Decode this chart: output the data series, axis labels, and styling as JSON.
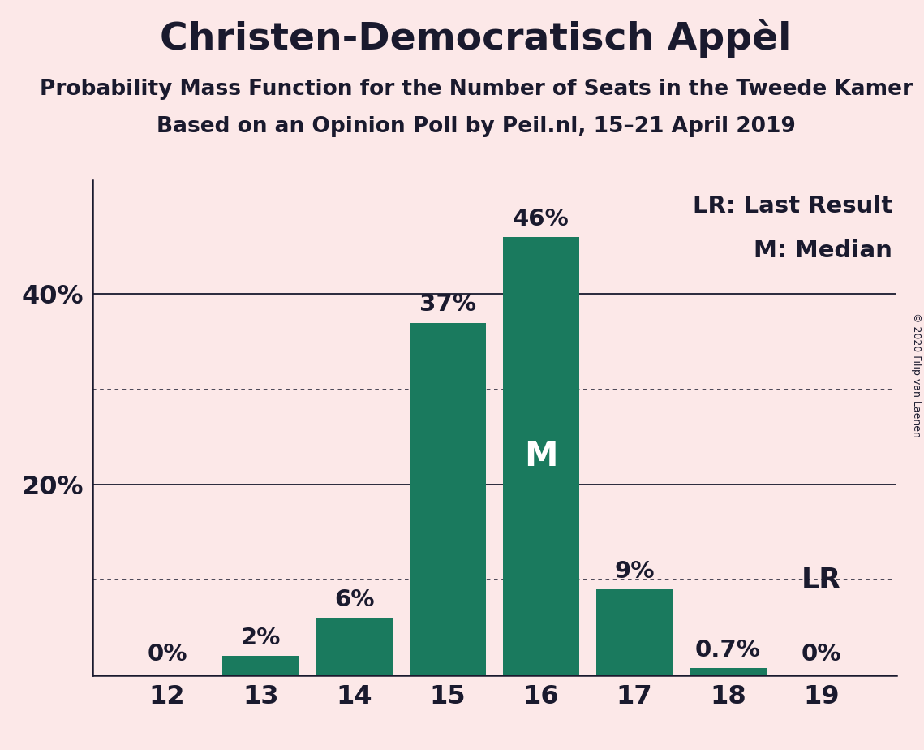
{
  "title": "Christen-Democratisch Appèl",
  "subtitle1": "Probability Mass Function for the Number of Seats in the Tweede Kamer",
  "subtitle2": "Based on an Opinion Poll by Peil.nl, 15–21 April 2019",
  "copyright": "© 2020 Filip van Laenen",
  "categories": [
    12,
    13,
    14,
    15,
    16,
    17,
    18,
    19
  ],
  "values": [
    0.0,
    2.0,
    6.0,
    37.0,
    46.0,
    9.0,
    0.7,
    0.0
  ],
  "bar_labels": [
    "0%",
    "2%",
    "6%",
    "37%",
    "46%",
    "9%",
    "0.7%",
    "0%"
  ],
  "bar_color": "#1a7a5e",
  "background_color": "#fce8e8",
  "text_color": "#1a1a2e",
  "median_seat": 16,
  "lr_seat": 19,
  "lr_label": "LR",
  "legend_lr": "LR: Last Result",
  "legend_m": "M: Median",
  "ylim": [
    0,
    52
  ],
  "yticks": [
    0,
    20,
    40
  ],
  "ytick_labels": [
    "",
    "20%",
    "40%"
  ],
  "dotted_lines": [
    10,
    30
  ],
  "solid_lines": [
    20,
    40
  ],
  "title_fontsize": 34,
  "subtitle_fontsize": 19,
  "bar_label_fontsize": 21,
  "axis_label_fontsize": 23,
  "legend_fontsize": 21,
  "median_label_fontsize": 30
}
